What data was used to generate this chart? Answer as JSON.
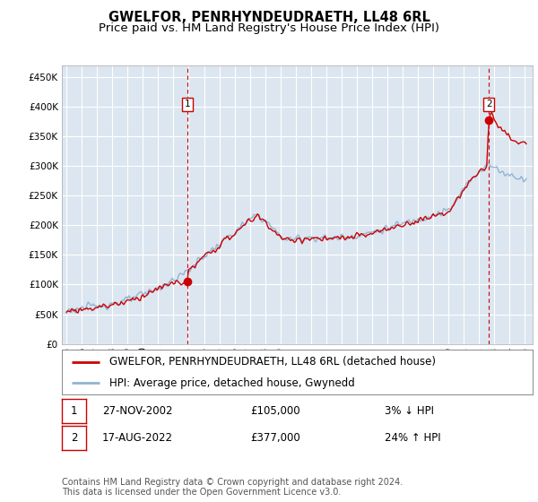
{
  "title": "GWELFOR, PENRHYNDEUDRAETH, LL48 6RL",
  "subtitle": "Price paid vs. HM Land Registry's House Price Index (HPI)",
  "ytick_values": [
    0,
    50000,
    100000,
    150000,
    200000,
    250000,
    300000,
    350000,
    400000,
    450000
  ],
  "ylim": [
    0,
    470000
  ],
  "xlim_start": 1994.7,
  "xlim_end": 2025.5,
  "fig_bg_color": "#ffffff",
  "plot_bg_color": "#dce6f0",
  "grid_color": "#ffffff",
  "hpi_color": "#92b4d4",
  "price_color": "#cc0000",
  "dashed_color": "#cc0000",
  "marker1_x": 2002.92,
  "marker1_y": 105000,
  "marker2_x": 2022.63,
  "marker2_y": 377000,
  "legend_line1": "GWELFOR, PENRHYNDEUDRAETH, LL48 6RL (detached house)",
  "legend_line2": "HPI: Average price, detached house, Gwynedd",
  "table_row1_num": "1",
  "table_row1_date": "27-NOV-2002",
  "table_row1_price": "£105,000",
  "table_row1_hpi": "3% ↓ HPI",
  "table_row2_num": "2",
  "table_row2_date": "17-AUG-2022",
  "table_row2_price": "£377,000",
  "table_row2_hpi": "24% ↑ HPI",
  "footnote": "Contains HM Land Registry data © Crown copyright and database right 2024.\nThis data is licensed under the Open Government Licence v3.0.",
  "title_fontsize": 10.5,
  "subtitle_fontsize": 9.5,
  "tick_fontsize": 7.5,
  "legend_fontsize": 8.5,
  "table_fontsize": 8.5,
  "footnote_fontsize": 7.0
}
